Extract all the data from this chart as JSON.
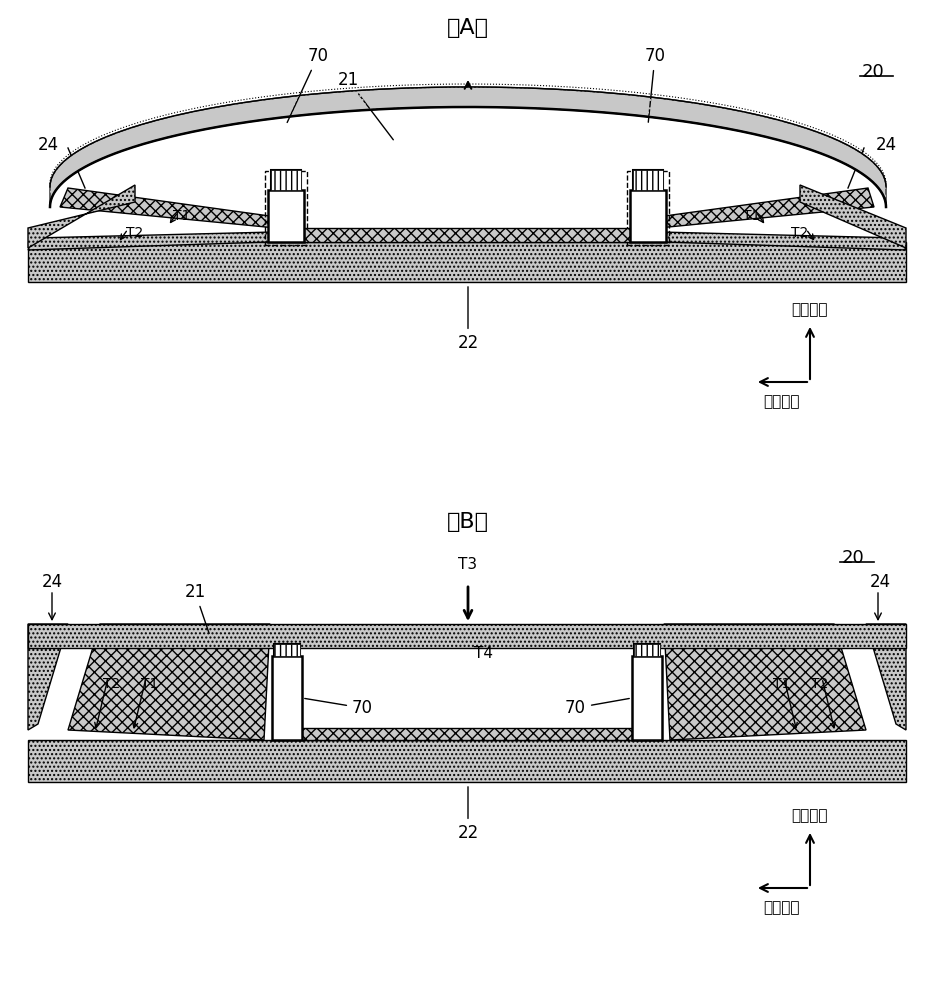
{
  "bg_color": "#ffffff",
  "title_A": "（A）",
  "title_B": "（B）",
  "label_20": "20",
  "label_21": "21",
  "label_22": "22",
  "thickness_label": "厚度方向",
  "length_label": "长度方向",
  "gray_light": "#c8c8c8",
  "black": "#000000",
  "white": "#ffffff"
}
